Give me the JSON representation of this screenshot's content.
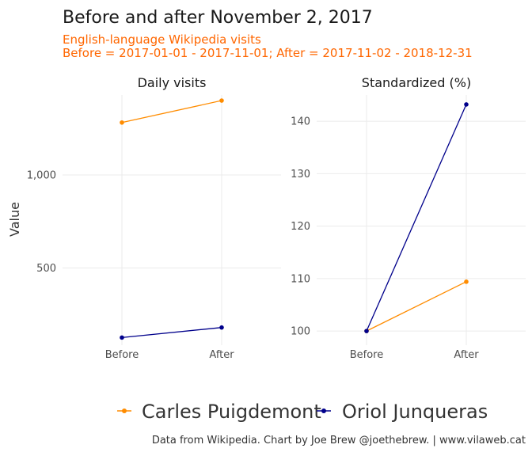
{
  "chart_data": {
    "type": "line",
    "title": "Before and after November 2, 2017",
    "subtitle_line1": "English-language Wikipedia visits",
    "subtitle_line2": "Before = 2017-01-01 - 2017-11-01; After = 2017-11-02 - 2018-12-31",
    "ylabel": "Value",
    "caption": "Data from Wikipedia. Chart by Joe Brew @joethebrew. | www.vilaweb.cat",
    "categories": [
      "Before",
      "After"
    ],
    "series_legend": [
      {
        "name": "Carles Puigdemont",
        "color": "#ff8c00"
      },
      {
        "name": "Oriol Junqueras",
        "color": "#00008b"
      }
    ],
    "panels": [
      {
        "title": "Daily visits",
        "ylim": [
          85,
          1430
        ],
        "yticks": [
          500,
          1000
        ],
        "ytick_labels": [
          "500",
          "1,000"
        ],
        "series": [
          {
            "name": "Carles Puigdemont",
            "values": [
              1282,
              1400
            ]
          },
          {
            "name": "Oriol Junqueras",
            "values": [
              126,
              180
            ]
          }
        ]
      },
      {
        "title": "Standardized (%)",
        "ylim": [
          97.3,
          145
        ],
        "yticks": [
          100,
          110,
          120,
          130,
          140
        ],
        "ytick_labels": [
          "100",
          "110",
          "120",
          "130",
          "140"
        ],
        "series": [
          {
            "name": "Carles Puigdemont",
            "values": [
              100,
              109.4
            ]
          },
          {
            "name": "Oriol Junqueras",
            "values": [
              100,
              143.2
            ]
          }
        ]
      }
    ]
  }
}
